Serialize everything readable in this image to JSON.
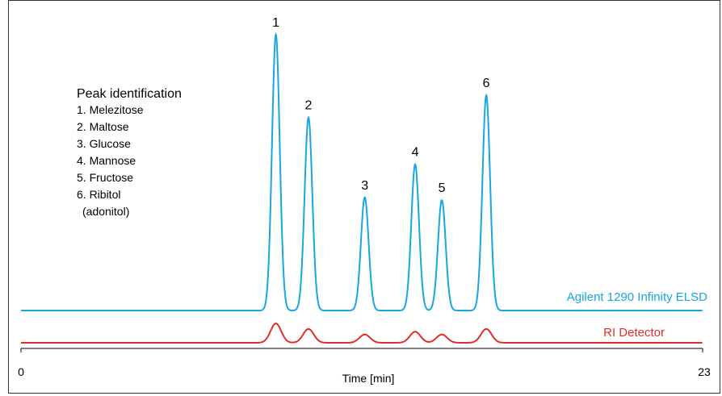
{
  "colors": {
    "elsd": "#1aa6df",
    "ri": "#e32b2b",
    "frame": "#333333",
    "axis": "#000000"
  },
  "chart_data": {
    "type": "line",
    "title": "",
    "xlabel": "Time [min]",
    "ylabel": "",
    "xlim": [
      0,
      23
    ],
    "x_ticks": [
      "0",
      "23"
    ],
    "legend": {
      "title": "Peak identification",
      "items": [
        "1. Melezitose",
        "2. Maltose",
        "3. Glucose",
        "4. Mannose",
        "5. Fructose",
        "6. Ribitol",
        "(adonitol)"
      ],
      "placement": "top-left"
    },
    "peaks": [
      {
        "label": "1",
        "time": 8.6
      },
      {
        "label": "2",
        "time": 9.7
      },
      {
        "label": "3",
        "time": 11.6
      },
      {
        "label": "4",
        "time": 13.3
      },
      {
        "label": "5",
        "time": 14.2
      },
      {
        "label": "6",
        "time": 15.7
      }
    ],
    "series": [
      {
        "name": "Agilent 1290 Infinity ELSD",
        "baseline": 0,
        "peak_heights": [
          1.0,
          0.7,
          0.41,
          0.53,
          0.4,
          0.78
        ]
      },
      {
        "name": "RI Detector",
        "baseline": 0,
        "peak_heights": [
          0.07,
          0.05,
          0.03,
          0.04,
          0.03,
          0.05
        ]
      }
    ]
  }
}
